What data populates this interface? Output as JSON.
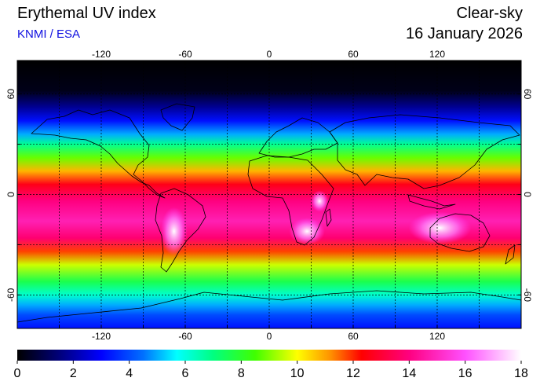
{
  "header": {
    "title": "Erythemal UV index",
    "credit": "KNMI / ESA",
    "mode": "Clear-sky",
    "date": "16 January 2026"
  },
  "map": {
    "projection": "equirectangular",
    "lon_range": [
      -180,
      180
    ],
    "lat_range": [
      -80,
      80
    ],
    "lon_ticks": [
      "-120",
      "-60",
      "0",
      "60",
      "120"
    ],
    "lat_ticks": [
      "60",
      "0",
      "-60"
    ],
    "lat_ticks_right": [
      "60",
      "0",
      "-60"
    ],
    "gridlines": "dotted",
    "grid_spacing_lon": 30,
    "grid_spacing_lat": 30,
    "coastlines": true
  },
  "colorbar": {
    "labels": [
      "0",
      "2",
      "4",
      "6",
      "8",
      "10",
      "12",
      "14",
      "16",
      "18"
    ],
    "min": 0,
    "max": 18,
    "stops": [
      {
        "v": 0,
        "c": "#000000"
      },
      {
        "v": 1.5,
        "c": "#00007a"
      },
      {
        "v": 3,
        "c": "#0000ff"
      },
      {
        "v": 4.5,
        "c": "#0070ff"
      },
      {
        "v": 5.7,
        "c": "#00ffff"
      },
      {
        "v": 7,
        "c": "#00ff80"
      },
      {
        "v": 8.5,
        "c": "#40ff00"
      },
      {
        "v": 10,
        "c": "#ffff00"
      },
      {
        "v": 11.2,
        "c": "#ff9000"
      },
      {
        "v": 12.3,
        "c": "#ff0000"
      },
      {
        "v": 14,
        "c": "#ff0080"
      },
      {
        "v": 16,
        "c": "#ff50ff"
      },
      {
        "v": 18,
        "c": "#ffffff"
      }
    ]
  },
  "uv_profile": [
    {
      "lat": 80,
      "uv": 0
    },
    {
      "lat": 62,
      "uv": 0.3
    },
    {
      "lat": 52,
      "uv": 1.8
    },
    {
      "lat": 44,
      "uv": 3.2
    },
    {
      "lat": 36,
      "uv": 5.0
    },
    {
      "lat": 30,
      "uv": 6.8
    },
    {
      "lat": 22,
      "uv": 8.8
    },
    {
      "lat": 14,
      "uv": 10.8
    },
    {
      "lat": 6,
      "uv": 12.6
    },
    {
      "lat": -4,
      "uv": 14.0
    },
    {
      "lat": -16,
      "uv": 14.8
    },
    {
      "lat": -26,
      "uv": 13.8
    },
    {
      "lat": -34,
      "uv": 11.8
    },
    {
      "lat": -42,
      "uv": 9.6
    },
    {
      "lat": -52,
      "uv": 7.6
    },
    {
      "lat": -60,
      "uv": 6.2
    },
    {
      "lat": -66,
      "uv": 5.0
    },
    {
      "lat": -72,
      "uv": 4.0
    },
    {
      "lat": -80,
      "uv": 3.2
    }
  ],
  "uv_hotspots": [
    {
      "name": "andes",
      "lon": -68,
      "lat": -22,
      "uv": 17.5,
      "rlon": 6,
      "rlat": 9
    },
    {
      "name": "southern-africa",
      "lon": 27,
      "lat": -22,
      "uv": 16.8,
      "rlon": 8,
      "rlat": 5
    },
    {
      "name": "australia",
      "lon": 122,
      "lat": -20,
      "uv": 16.2,
      "rlon": 14,
      "rlat": 6
    },
    {
      "name": "east-africa",
      "lon": 36,
      "lat": -4,
      "uv": 15.6,
      "rlon": 4,
      "rlat": 4
    }
  ]
}
